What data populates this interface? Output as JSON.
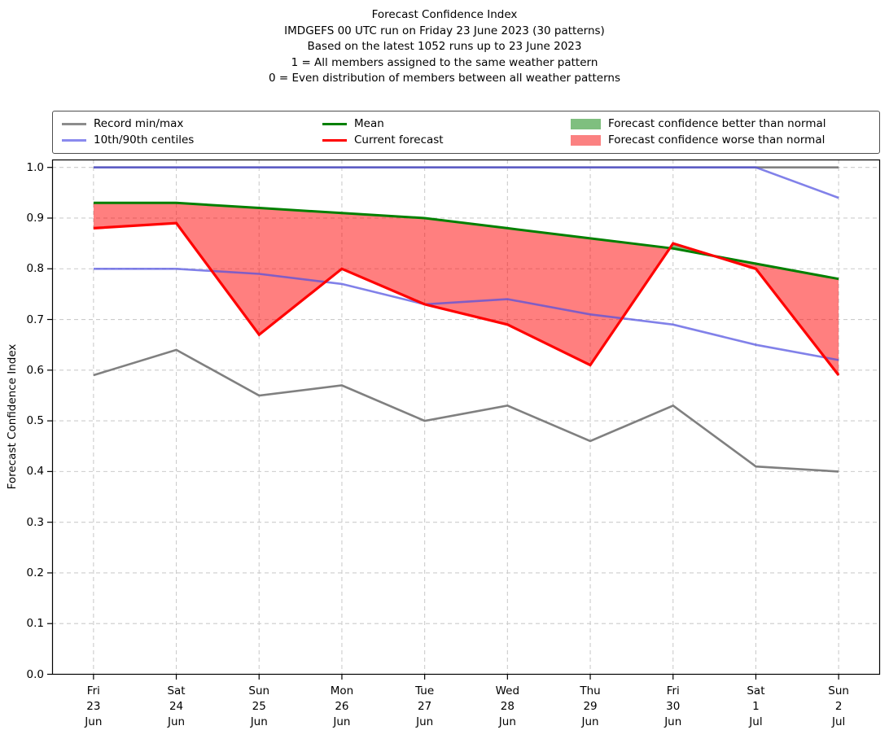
{
  "title": {
    "lines": [
      "Forecast Confidence Index",
      "IMDGEFS 00 UTC run on Friday 23 June 2023 (30 patterns)",
      "Based on the latest 1052 runs up to 23 June 2023",
      "1 = All members assigned to the same weather pattern",
      "0 = Even distribution of members between all weather patterns"
    ]
  },
  "legend": {
    "columns": [
      {
        "items": [
          {
            "swatch": "line",
            "color": "#8c8c8c",
            "label": "Record min/max"
          },
          {
            "swatch": "line",
            "color": "#8a8aee",
            "label": "10th/90th centiles"
          }
        ]
      },
      {
        "items": [
          {
            "swatch": "line",
            "color": "#008000",
            "label": "Mean"
          },
          {
            "swatch": "line",
            "color": "#ff0000",
            "label": "Current forecast"
          }
        ]
      },
      {
        "items": [
          {
            "swatch": "patch",
            "color": "#7fbf7f",
            "label": "Forecast confidence better than normal"
          },
          {
            "swatch": "patch",
            "color": "#fb8181",
            "label": "Forecast confidence worse than normal"
          }
        ]
      }
    ]
  },
  "chart_data": {
    "type": "line",
    "title": "Forecast Confidence Index",
    "xlabel": "",
    "ylabel": "Forecast Confidence Index",
    "ylim": [
      0.0,
      1.0
    ],
    "ytick_step": 0.1,
    "y_tick_labels": [
      "0.0",
      "0.1",
      "0.2",
      "0.3",
      "0.4",
      "0.5",
      "0.6",
      "0.7",
      "0.8",
      "0.9",
      "1.0"
    ],
    "grid": true,
    "legend_position": "top",
    "categories": [
      [
        "Fri",
        "23",
        "Jun"
      ],
      [
        "Sat",
        "24",
        "Jun"
      ],
      [
        "Sun",
        "25",
        "Jun"
      ],
      [
        "Mon",
        "26",
        "Jun"
      ],
      [
        "Tue",
        "27",
        "Jun"
      ],
      [
        "Wed",
        "28",
        "Jun"
      ],
      [
        "Thu",
        "29",
        "Jun"
      ],
      [
        "Fri",
        "30",
        "Jun"
      ],
      [
        "Sat",
        "1",
        "Jul"
      ],
      [
        "Sun",
        "2",
        "Jul"
      ]
    ],
    "series": [
      {
        "name": "Record max",
        "color": "#808080",
        "width": 2.6,
        "opacity": 1,
        "values": [
          1.0,
          1.0,
          1.0,
          1.0,
          1.0,
          1.0,
          1.0,
          1.0,
          1.0,
          1.0
        ]
      },
      {
        "name": "Record min",
        "color": "#808080",
        "width": 2.6,
        "opacity": 1,
        "values": [
          0.59,
          0.64,
          0.55,
          0.57,
          0.5,
          0.53,
          0.46,
          0.53,
          0.41,
          0.4
        ]
      },
      {
        "name": "90th centile",
        "color": "#5050e0",
        "width": 2.6,
        "opacity": 0.72,
        "values": [
          1.0,
          1.0,
          1.0,
          1.0,
          1.0,
          1.0,
          1.0,
          1.0,
          1.0,
          0.94
        ]
      },
      {
        "name": "10th centile",
        "color": "#5050e0",
        "width": 2.6,
        "opacity": 0.72,
        "values": [
          0.8,
          0.8,
          0.79,
          0.77,
          0.73,
          0.74,
          0.71,
          0.69,
          0.65,
          0.62
        ]
      },
      {
        "name": "Mean",
        "color": "#008000",
        "width": 3.0,
        "opacity": 1,
        "values": [
          0.93,
          0.93,
          0.92,
          0.91,
          0.9,
          0.88,
          0.86,
          0.84,
          0.81,
          0.78
        ]
      },
      {
        "name": "Current forecast",
        "color": "#ff0000",
        "width": 3.2,
        "opacity": 1,
        "values": [
          0.88,
          0.89,
          0.67,
          0.8,
          0.73,
          0.69,
          0.61,
          0.85,
          0.8,
          0.59
        ]
      }
    ],
    "fills": [
      {
        "name": "Forecast confidence better than normal",
        "between": [
          "Current forecast",
          "Mean"
        ],
        "when": "above",
        "color": "#008000",
        "opacity": 0.5
      },
      {
        "name": "Forecast confidence worse than normal",
        "between": [
          "Current forecast",
          "Mean"
        ],
        "when": "below",
        "color": "#ff0000",
        "opacity": 0.5
      }
    ],
    "grid_color": "#cccccc"
  }
}
